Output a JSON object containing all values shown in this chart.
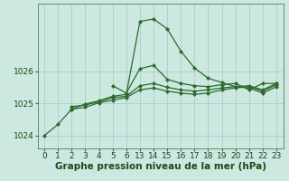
{
  "background_color": "#cce8e0",
  "grid_color": "#aacfc8",
  "line_color": "#2d6a2d",
  "marker_color": "#2d6a2d",
  "xlabel": "Graphe pression niveau de la mer (hPa)",
  "xlabel_fontsize": 7.5,
  "tick_fontsize": 6.5,
  "xlim": [
    -0.5,
    17.5
  ],
  "ylim": [
    1023.6,
    1028.1
  ],
  "yticks": [
    1024,
    1025,
    1026
  ],
  "x_labels": [
    "0",
    "1",
    "2",
    "3",
    "4",
    "5",
    "6",
    "13",
    "14",
    "15",
    "16",
    "17",
    "18",
    "19",
    "20",
    "21",
    "22",
    "23"
  ],
  "series": [
    {
      "xi": [
        0,
        1,
        2,
        3,
        4,
        5,
        6,
        7,
        8,
        9,
        10,
        11,
        12,
        13,
        14,
        15,
        16,
        17
      ],
      "y": [
        1024.0,
        1024.35,
        1024.82,
        1024.98,
        1025.08,
        1025.22,
        1025.28,
        1027.55,
        1027.62,
        1027.32,
        1026.62,
        1026.1,
        1025.78,
        1025.65,
        1025.52,
        1025.48,
        1025.32,
        1025.52
      ],
      "linewidth": 0.9
    },
    {
      "xi": [
        2,
        3,
        4,
        5,
        6,
        7,
        8,
        9,
        10,
        11,
        12,
        13,
        14,
        15,
        16,
        17
      ],
      "y": [
        1024.9,
        1024.95,
        1025.05,
        1025.18,
        1025.22,
        1025.55,
        1025.62,
        1025.5,
        1025.42,
        1025.38,
        1025.42,
        1025.48,
        1025.52,
        1025.55,
        1025.42,
        1025.62
      ],
      "linewidth": 0.9
    },
    {
      "xi": [
        2,
        3,
        4,
        5,
        6,
        7,
        8,
        9,
        10,
        11,
        12,
        13,
        14,
        15,
        16,
        17
      ],
      "y": [
        1024.82,
        1024.88,
        1025.02,
        1025.1,
        1025.18,
        1025.42,
        1025.48,
        1025.38,
        1025.32,
        1025.28,
        1025.32,
        1025.42,
        1025.48,
        1025.52,
        1025.38,
        1025.58
      ],
      "linewidth": 0.9
    },
    {
      "xi": [
        5,
        6,
        7,
        8,
        9,
        10,
        11,
        12,
        13,
        14,
        15,
        16,
        17
      ],
      "y": [
        1025.55,
        1025.32,
        1026.08,
        1026.18,
        1025.75,
        1025.62,
        1025.55,
        1025.52,
        1025.58,
        1025.62,
        1025.42,
        1025.62,
        1025.62
      ],
      "linewidth": 0.9
    }
  ]
}
